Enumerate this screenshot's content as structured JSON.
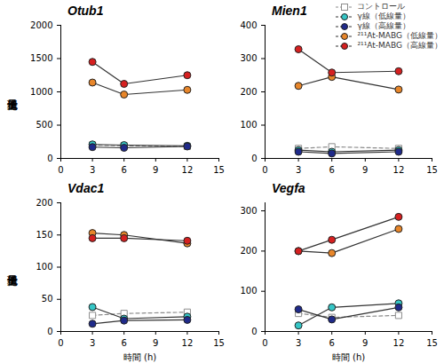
{
  "chart_data": [
    {
      "type": "line",
      "title": "Otub1",
      "y_label": "遺伝子発現量",
      "x": [
        3,
        6,
        12
      ],
      "xlim": [
        0,
        15
      ],
      "xticks": [
        0,
        3,
        6,
        9,
        12,
        15
      ],
      "ylim": [
        0,
        2000
      ],
      "yticks": [
        0,
        500,
        1000,
        1500,
        2000
      ],
      "series": [
        {
          "name": "コントロール",
          "color": "#8c8c8c",
          "marker": "square",
          "line_style": "dashed",
          "values": [
            200,
            190,
            180
          ]
        },
        {
          "name": "γ線（低線量）",
          "color": "#35c6c6",
          "marker": "circle",
          "line_style": "solid",
          "values": [
            210,
            200,
            190
          ]
        },
        {
          "name": "γ線（高線量）",
          "color": "#1f2a8a",
          "marker": "circle",
          "line_style": "solid",
          "values": [
            170,
            160,
            180
          ]
        },
        {
          "name": "²¹¹At-MABG（低線量）",
          "color": "#e8862a",
          "marker": "circle",
          "line_style": "solid",
          "values": [
            1140,
            960,
            1030
          ]
        },
        {
          "name": "²¹¹At-MABG（高線量）",
          "color": "#d62020",
          "marker": "circle",
          "line_style": "solid",
          "values": [
            1450,
            1120,
            1250
          ]
        }
      ]
    },
    {
      "type": "line",
      "title": "Mien1",
      "legend": "top-right",
      "x": [
        3,
        6,
        12
      ],
      "xlim": [
        0,
        15
      ],
      "xticks": [
        0,
        3,
        6,
        9,
        12,
        15
      ],
      "ylim": [
        0,
        400
      ],
      "yticks": [
        0,
        100,
        200,
        300,
        400
      ],
      "series": [
        {
          "name": "コントロール",
          "color": "#8c8c8c",
          "marker": "square",
          "line_style": "dashed",
          "values": [
            30,
            35,
            30
          ]
        },
        {
          "name": "γ線（低線量）",
          "color": "#35c6c6",
          "marker": "circle",
          "line_style": "solid",
          "values": [
            25,
            20,
            25
          ]
        },
        {
          "name": "γ線（高線量）",
          "color": "#1f2a8a",
          "marker": "circle",
          "line_style": "solid",
          "values": [
            20,
            15,
            20
          ]
        },
        {
          "name": "²¹¹At-MABG（低線量）",
          "color": "#e8862a",
          "marker": "circle",
          "line_style": "solid",
          "values": [
            218,
            245,
            207
          ]
        },
        {
          "name": "²¹¹At-MABG（高線量）",
          "color": "#d62020",
          "marker": "circle",
          "line_style": "solid",
          "values": [
            328,
            258,
            262
          ]
        }
      ]
    },
    {
      "type": "line",
      "title": "Vdac1",
      "y_label": "遺伝子発現量",
      "x_label": "時間 (h)",
      "x": [
        3,
        6,
        12
      ],
      "xlim": [
        0,
        15
      ],
      "xticks": [
        0,
        3,
        6,
        9,
        12,
        15
      ],
      "ylim": [
        0,
        200
      ],
      "yticks": [
        0,
        50,
        100,
        150,
        200
      ],
      "series": [
        {
          "name": "コントロール",
          "color": "#8c8c8c",
          "marker": "square",
          "line_style": "dashed",
          "values": [
            25,
            28,
            30
          ]
        },
        {
          "name": "γ線（低線量）",
          "color": "#35c6c6",
          "marker": "circle",
          "line_style": "solid",
          "values": [
            38,
            20,
            23
          ]
        },
        {
          "name": "γ線（高線量）",
          "color": "#1f2a8a",
          "marker": "circle",
          "line_style": "solid",
          "values": [
            12,
            17,
            18
          ]
        },
        {
          "name": "²¹¹At-MABG（低線量）",
          "color": "#e8862a",
          "marker": "circle",
          "line_style": "solid",
          "values": [
            153,
            150,
            137
          ]
        },
        {
          "name": "²¹¹At-MABG（高線量）",
          "color": "#d62020",
          "marker": "circle",
          "line_style": "solid",
          "values": [
            145,
            145,
            141
          ]
        }
      ]
    },
    {
      "type": "line",
      "title": "Vegfa",
      "x_label": "時間 (h)",
      "x": [
        3,
        6,
        12
      ],
      "xlim": [
        0,
        15
      ],
      "xticks": [
        0,
        3,
        6,
        9,
        12,
        15
      ],
      "ylim": [
        0,
        320
      ],
      "yticks": [
        0,
        100,
        200,
        300
      ],
      "series": [
        {
          "name": "コントロール",
          "color": "#8c8c8c",
          "marker": "square",
          "line_style": "dashed",
          "values": [
            45,
            35,
            40
          ]
        },
        {
          "name": "γ線（低線量）",
          "color": "#35c6c6",
          "marker": "circle",
          "line_style": "solid",
          "values": [
            15,
            60,
            70
          ]
        },
        {
          "name": "γ線（高線量）",
          "color": "#1f2a8a",
          "marker": "circle",
          "line_style": "solid",
          "values": [
            55,
            30,
            60
          ]
        },
        {
          "name": "²¹¹At-MABG（低線量）",
          "color": "#e8862a",
          "marker": "circle",
          "line_style": "solid",
          "values": [
            200,
            195,
            255
          ]
        },
        {
          "name": "²¹¹At-MABG（高線量）",
          "color": "#d62020",
          "marker": "circle",
          "line_style": "solid",
          "values": [
            200,
            228,
            285
          ]
        }
      ]
    }
  ]
}
